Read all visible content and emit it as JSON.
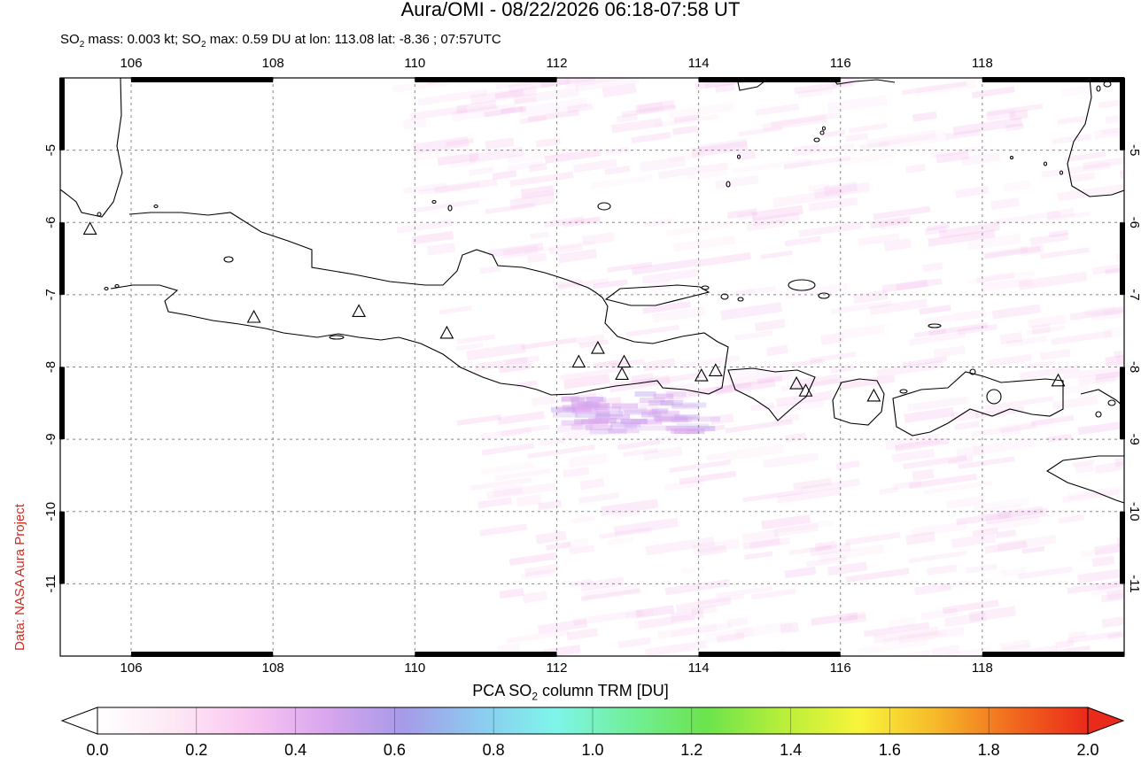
{
  "title": "Aura/OMI - 08/22/2026 06:18-07:58 UT",
  "subtitle": {
    "mass_prefix": "SO",
    "mass_sub": "2",
    "mass_text": " mass: 0.003 kt; SO",
    "max_sub": "2",
    "max_text": " max: 0.59 DU at lon: 113.08 lat: -8.36 ; 07:57UTC"
  },
  "credit": "Data: NASA Aura Project",
  "colorbar": {
    "title_prefix": "PCA SO",
    "title_sub": "2",
    "title_suffix": " column TRM [DU]",
    "tick_labels": [
      "0.0",
      "0.2",
      "0.4",
      "0.6",
      "0.8",
      "1.0",
      "1.2",
      "1.4",
      "1.6",
      "1.8",
      "2.0"
    ],
    "colors": [
      "#ffffff",
      "#fde8f4",
      "#f9c6f1",
      "#d9a6ee",
      "#a79ae8",
      "#8ccaf0",
      "#7ef5ea",
      "#71ef9a",
      "#6be34c",
      "#b8ef3a",
      "#f8f43a",
      "#f6b92a",
      "#f26a1f",
      "#ea2a1a"
    ]
  },
  "map": {
    "lon_range": [
      105.0,
      120.0
    ],
    "lat_range": [
      -12.0,
      -4.0
    ],
    "x_tick_labels": [
      "106",
      "108",
      "110",
      "112",
      "114",
      "116",
      "118"
    ],
    "y_tick_labels": [
      "-5",
      "-6",
      "-7",
      "-8",
      "-9",
      "-10",
      "-11"
    ],
    "volcanoes_lonlat": [
      [
        105.42,
        -6.1
      ],
      [
        107.73,
        -7.32
      ],
      [
        109.21,
        -7.24
      ],
      [
        110.45,
        -7.54
      ],
      [
        112.31,
        -7.94
      ],
      [
        112.58,
        -7.75
      ],
      [
        112.95,
        -7.94
      ],
      [
        112.92,
        -8.11
      ],
      [
        114.04,
        -8.13
      ],
      [
        114.24,
        -8.06
      ],
      [
        115.38,
        -8.24
      ],
      [
        115.51,
        -8.34
      ],
      [
        116.47,
        -8.41
      ],
      [
        119.07,
        -8.2
      ]
    ]
  }
}
